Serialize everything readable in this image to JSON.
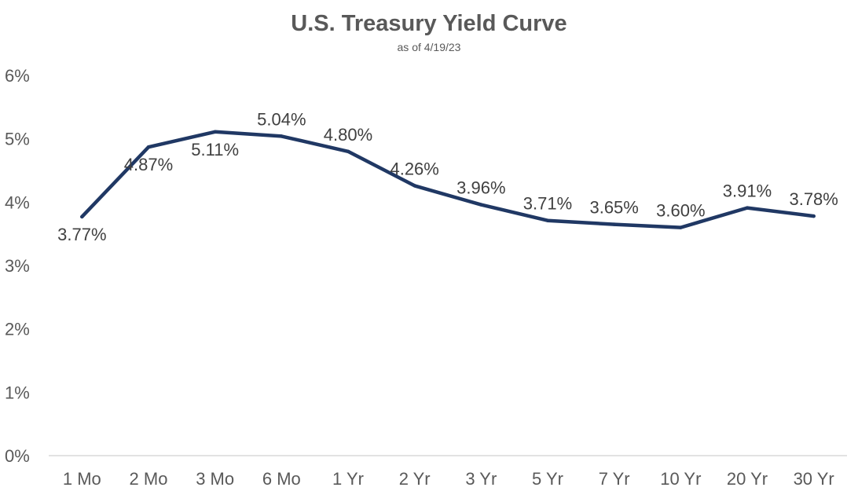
{
  "chart_data": {
    "type": "line",
    "title": "U.S. Treasury Yield Curve",
    "subtitle": "as of 4/19/23",
    "categories": [
      "1 Mo",
      "2 Mo",
      "3 Mo",
      "6 Mo",
      "1 Yr",
      "2 Yr",
      "3 Yr",
      "5 Yr",
      "7 Yr",
      "10 Yr",
      "20 Yr",
      "30 Yr"
    ],
    "series": [
      {
        "values": [
          3.77,
          4.87,
          5.11,
          5.04,
          4.8,
          4.26,
          3.96,
          3.71,
          3.65,
          3.6,
          3.91,
          3.78
        ]
      }
    ],
    "data_labels": [
      "3.77%",
      "4.87%",
      "5.11%",
      "5.04%",
      "4.80%",
      "4.26%",
      "3.96%",
      "3.71%",
      "3.65%",
      "3.60%",
      "3.91%",
      "3.78%"
    ],
    "y_ticks": [
      "0%",
      "1%",
      "2%",
      "3%",
      "4%",
      "5%",
      "6%"
    ],
    "ylim": [
      0,
      6
    ],
    "grid": false,
    "legend": "none",
    "line_color": "#203864"
  }
}
